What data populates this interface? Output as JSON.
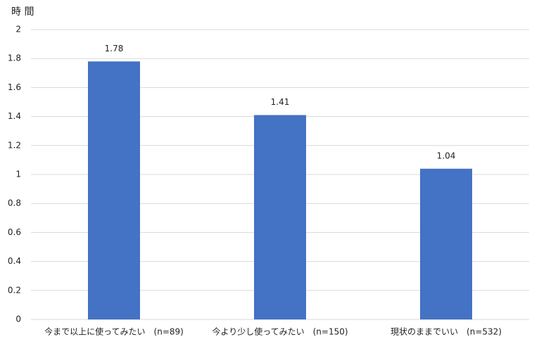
{
  "chart_data": {
    "type": "bar",
    "y_label": "時 間",
    "categories": [
      "今まで以上に使ってみたい　(n=89)",
      "今より少し使ってみたい　(n=150)",
      "現状のままでいい　(n=532)"
    ],
    "values": [
      1.78,
      1.41,
      1.04
    ],
    "color": "#4472c4",
    "ylim": [
      0,
      2
    ],
    "yticks": [
      0,
      0.2,
      0.4,
      0.6,
      0.8,
      1,
      1.2,
      1.4,
      1.6,
      1.8,
      2
    ],
    "grid": true
  }
}
